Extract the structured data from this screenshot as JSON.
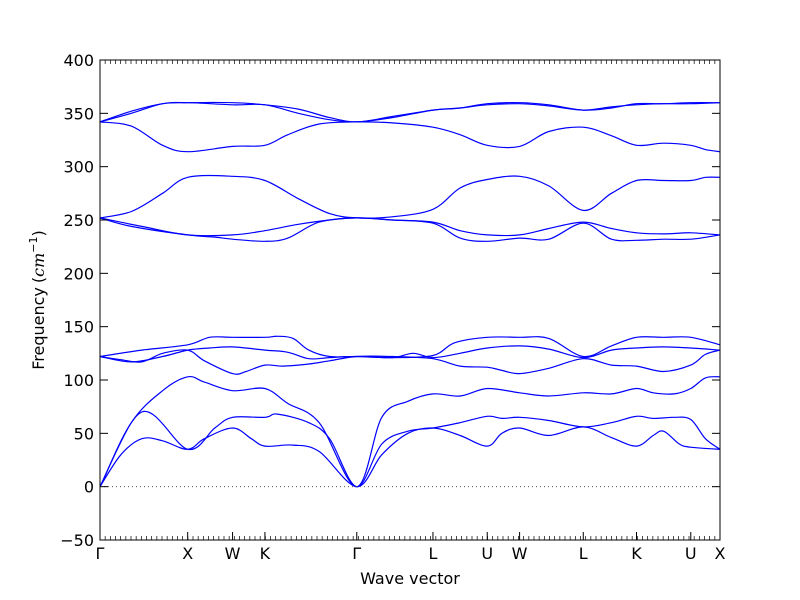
{
  "chart_data": {
    "type": "line",
    "xlabel": "Wave vector",
    "ylabel": "Frequency",
    "ylabel_unit_base": "cm",
    "ylabel_unit_exp": "−1",
    "ylim": [
      -50,
      400
    ],
    "yticks": [
      -50,
      0,
      50,
      100,
      150,
      200,
      250,
      300,
      350,
      400
    ],
    "grid": false,
    "line_color": "#0000ff",
    "zero_line": {
      "y": 0,
      "style": "dotted",
      "color": "#555555"
    },
    "xlim": [
      0,
      5.94
    ],
    "xticks": [
      {
        "label": "Γ",
        "x": 0.0
      },
      {
        "label": "X",
        "x": 0.84
      },
      {
        "label": "W",
        "x": 1.27
      },
      {
        "label": "K",
        "x": 1.58
      },
      {
        "label": "Γ",
        "x": 2.46
      },
      {
        "label": "L",
        "x": 3.19
      },
      {
        "label": "U",
        "x": 3.71
      },
      {
        "label": "W",
        "x": 4.02
      },
      {
        "label": "L",
        "x": 4.63
      },
      {
        "label": "K",
        "x": 5.14
      },
      {
        "label": "U",
        "x": 5.66
      },
      {
        "label": "X",
        "x": 5.94
      }
    ],
    "series": [
      {
        "points": [
          [
            0,
            0
          ],
          [
            0.2,
            30
          ],
          [
            0.4,
            45
          ],
          [
            0.6,
            43
          ],
          [
            0.84,
            35
          ],
          [
            1.0,
            45
          ],
          [
            1.27,
            55
          ],
          [
            1.45,
            45
          ],
          [
            1.58,
            38
          ],
          [
            1.85,
            39
          ],
          [
            2.1,
            33
          ],
          [
            2.46,
            0
          ],
          [
            2.7,
            30
          ],
          [
            2.95,
            50
          ],
          [
            3.19,
            55
          ],
          [
            3.45,
            48
          ],
          [
            3.71,
            38
          ],
          [
            3.85,
            50
          ],
          [
            4.02,
            55
          ],
          [
            4.3,
            48
          ],
          [
            4.63,
            56
          ],
          [
            4.9,
            46
          ],
          [
            5.14,
            38
          ],
          [
            5.3,
            48
          ],
          [
            5.4,
            52
          ],
          [
            5.55,
            40
          ],
          [
            5.66,
            37
          ],
          [
            5.94,
            35
          ]
        ]
      },
      {
        "points": [
          [
            0,
            0
          ],
          [
            0.3,
            60
          ],
          [
            0.6,
            90
          ],
          [
            0.84,
            103
          ],
          [
            1.0,
            98
          ],
          [
            1.27,
            90
          ],
          [
            1.58,
            92
          ],
          [
            1.8,
            78
          ],
          [
            2.1,
            60
          ],
          [
            2.46,
            0
          ],
          [
            2.7,
            65
          ],
          [
            2.95,
            80
          ],
          [
            3.19,
            87
          ],
          [
            3.45,
            85
          ],
          [
            3.71,
            92
          ],
          [
            4.02,
            88
          ],
          [
            4.3,
            85
          ],
          [
            4.63,
            88
          ],
          [
            4.9,
            87
          ],
          [
            5.14,
            92
          ],
          [
            5.3,
            88
          ],
          [
            5.5,
            87
          ],
          [
            5.66,
            92
          ],
          [
            5.8,
            102
          ],
          [
            5.94,
            103
          ]
        ]
      },
      {
        "points": [
          [
            0,
            0
          ],
          [
            0.4,
            70
          ],
          [
            0.84,
            35
          ],
          [
            1.1,
            55
          ],
          [
            1.27,
            65
          ],
          [
            1.58,
            65
          ],
          [
            1.7,
            68
          ],
          [
            2.0,
            60
          ],
          [
            2.2,
            45
          ],
          [
            2.46,
            0
          ],
          [
            2.7,
            40
          ],
          [
            2.95,
            52
          ],
          [
            3.19,
            55
          ],
          [
            3.45,
            60
          ],
          [
            3.71,
            66
          ],
          [
            3.85,
            64
          ],
          [
            4.02,
            65
          ],
          [
            4.3,
            62
          ],
          [
            4.63,
            56
          ],
          [
            4.9,
            60
          ],
          [
            5.14,
            66
          ],
          [
            5.3,
            64
          ],
          [
            5.5,
            65
          ],
          [
            5.66,
            63
          ],
          [
            5.8,
            45
          ],
          [
            5.94,
            35
          ]
        ]
      },
      {
        "points": [
          [
            0,
            122
          ],
          [
            0.2,
            119
          ],
          [
            0.4,
            117
          ],
          [
            0.6,
            125
          ],
          [
            0.84,
            128
          ],
          [
            1.0,
            118
          ],
          [
            1.27,
            106
          ],
          [
            1.4,
            108
          ],
          [
            1.58,
            114
          ],
          [
            1.75,
            113
          ],
          [
            2.0,
            115
          ],
          [
            2.2,
            118
          ],
          [
            2.46,
            122
          ],
          [
            2.8,
            122
          ],
          [
            3.19,
            120
          ],
          [
            3.45,
            113
          ],
          [
            3.71,
            112
          ],
          [
            3.85,
            109
          ],
          [
            4.02,
            106
          ],
          [
            4.3,
            111
          ],
          [
            4.63,
            120
          ],
          [
            4.9,
            114
          ],
          [
            5.14,
            113
          ],
          [
            5.4,
            108
          ],
          [
            5.66,
            114
          ],
          [
            5.8,
            124
          ],
          [
            5.94,
            128
          ]
        ]
      },
      {
        "points": [
          [
            0,
            122
          ],
          [
            0.3,
            117
          ],
          [
            0.6,
            122
          ],
          [
            0.84,
            128
          ],
          [
            1.05,
            130
          ],
          [
            1.27,
            131
          ],
          [
            1.58,
            128
          ],
          [
            1.8,
            126
          ],
          [
            2.0,
            120
          ],
          [
            2.2,
            121
          ],
          [
            2.46,
            122
          ],
          [
            2.8,
            121
          ],
          [
            3.0,
            125
          ],
          [
            3.19,
            121
          ],
          [
            3.45,
            125
          ],
          [
            3.71,
            130
          ],
          [
            4.02,
            132
          ],
          [
            4.3,
            129
          ],
          [
            4.63,
            121
          ],
          [
            4.9,
            128
          ],
          [
            5.14,
            130
          ],
          [
            5.4,
            131
          ],
          [
            5.66,
            130
          ],
          [
            5.94,
            128
          ]
        ]
      },
      {
        "points": [
          [
            0,
            122
          ],
          [
            0.4,
            128
          ],
          [
            0.84,
            133
          ],
          [
            1.05,
            140
          ],
          [
            1.27,
            140
          ],
          [
            1.58,
            140
          ],
          [
            1.7,
            141
          ],
          [
            1.85,
            139
          ],
          [
            2.0,
            128
          ],
          [
            2.2,
            122
          ],
          [
            2.46,
            122
          ],
          [
            2.8,
            121
          ],
          [
            3.19,
            123
          ],
          [
            3.4,
            135
          ],
          [
            3.71,
            140
          ],
          [
            4.02,
            140
          ],
          [
            4.3,
            139
          ],
          [
            4.63,
            122
          ],
          [
            4.9,
            132
          ],
          [
            5.14,
            140
          ],
          [
            5.4,
            140
          ],
          [
            5.66,
            140
          ],
          [
            5.94,
            133
          ]
        ]
      },
      {
        "points": [
          [
            0,
            252
          ],
          [
            0.3,
            244
          ],
          [
            0.84,
            236
          ],
          [
            1.1,
            234
          ],
          [
            1.27,
            232
          ],
          [
            1.58,
            230
          ],
          [
            1.8,
            233
          ],
          [
            2.1,
            248
          ],
          [
            2.46,
            252
          ],
          [
            2.8,
            250
          ],
          [
            3.19,
            247
          ],
          [
            3.45,
            233
          ],
          [
            3.71,
            230
          ],
          [
            4.02,
            233
          ],
          [
            4.3,
            232
          ],
          [
            4.63,
            247
          ],
          [
            4.9,
            232
          ],
          [
            5.14,
            231
          ],
          [
            5.4,
            232
          ],
          [
            5.66,
            232
          ],
          [
            5.94,
            236
          ]
        ]
      },
      {
        "points": [
          [
            0,
            252
          ],
          [
            0.4,
            244
          ],
          [
            0.84,
            236
          ],
          [
            1.27,
            236
          ],
          [
            1.58,
            240
          ],
          [
            1.9,
            246
          ],
          [
            2.2,
            250
          ],
          [
            2.46,
            252
          ],
          [
            2.8,
            250
          ],
          [
            3.19,
            248
          ],
          [
            3.45,
            240
          ],
          [
            3.71,
            236
          ],
          [
            4.02,
            236
          ],
          [
            4.3,
            242
          ],
          [
            4.63,
            248
          ],
          [
            4.9,
            242
          ],
          [
            5.14,
            238
          ],
          [
            5.4,
            237
          ],
          [
            5.66,
            238
          ],
          [
            5.94,
            236
          ]
        ]
      },
      {
        "points": [
          [
            0,
            252
          ],
          [
            0.3,
            258
          ],
          [
            0.6,
            275
          ],
          [
            0.84,
            290
          ],
          [
            1.27,
            291
          ],
          [
            1.58,
            287
          ],
          [
            1.9,
            270
          ],
          [
            2.2,
            256
          ],
          [
            2.46,
            252
          ],
          [
            2.8,
            253
          ],
          [
            3.19,
            260
          ],
          [
            3.45,
            280
          ],
          [
            3.71,
            288
          ],
          [
            4.02,
            291
          ],
          [
            4.3,
            282
          ],
          [
            4.63,
            259
          ],
          [
            4.9,
            275
          ],
          [
            5.14,
            287
          ],
          [
            5.4,
            287
          ],
          [
            5.66,
            287
          ],
          [
            5.8,
            290
          ],
          [
            5.94,
            290
          ]
        ]
      },
      {
        "points": [
          [
            0,
            342
          ],
          [
            0.3,
            338
          ],
          [
            0.6,
            320
          ],
          [
            0.84,
            314
          ],
          [
            1.27,
            319
          ],
          [
            1.58,
            320
          ],
          [
            1.8,
            330
          ],
          [
            2.1,
            340
          ],
          [
            2.46,
            342
          ],
          [
            2.8,
            341
          ],
          [
            3.19,
            337
          ],
          [
            3.45,
            330
          ],
          [
            3.71,
            320
          ],
          [
            4.02,
            319
          ],
          [
            4.3,
            333
          ],
          [
            4.63,
            337
          ],
          [
            4.9,
            329
          ],
          [
            5.14,
            320
          ],
          [
            5.4,
            322
          ],
          [
            5.66,
            320
          ],
          [
            5.8,
            316
          ],
          [
            5.94,
            314
          ]
        ]
      },
      {
        "points": [
          [
            0,
            342
          ],
          [
            0.3,
            350
          ],
          [
            0.6,
            359
          ],
          [
            0.84,
            360
          ],
          [
            1.27,
            358
          ],
          [
            1.58,
            358
          ],
          [
            1.9,
            350
          ],
          [
            2.2,
            344
          ],
          [
            2.46,
            342
          ],
          [
            2.8,
            346
          ],
          [
            3.19,
            353
          ],
          [
            3.45,
            355
          ],
          [
            3.71,
            358
          ],
          [
            4.02,
            359
          ],
          [
            4.3,
            357
          ],
          [
            4.63,
            353
          ],
          [
            4.9,
            356
          ],
          [
            5.14,
            358
          ],
          [
            5.4,
            359
          ],
          [
            5.66,
            359
          ],
          [
            5.94,
            360
          ]
        ]
      },
      {
        "points": [
          [
            0,
            342
          ],
          [
            0.3,
            352
          ],
          [
            0.6,
            359
          ],
          [
            0.84,
            360
          ],
          [
            1.27,
            360
          ],
          [
            1.58,
            358
          ],
          [
            1.9,
            354
          ],
          [
            2.2,
            346
          ],
          [
            2.46,
            342
          ],
          [
            2.8,
            347
          ],
          [
            3.19,
            353
          ],
          [
            3.45,
            355
          ],
          [
            3.71,
            359
          ],
          [
            4.02,
            360
          ],
          [
            4.3,
            358
          ],
          [
            4.63,
            353
          ],
          [
            4.9,
            355
          ],
          [
            5.14,
            359
          ],
          [
            5.4,
            359
          ],
          [
            5.66,
            360
          ],
          [
            5.94,
            360
          ]
        ]
      }
    ]
  }
}
